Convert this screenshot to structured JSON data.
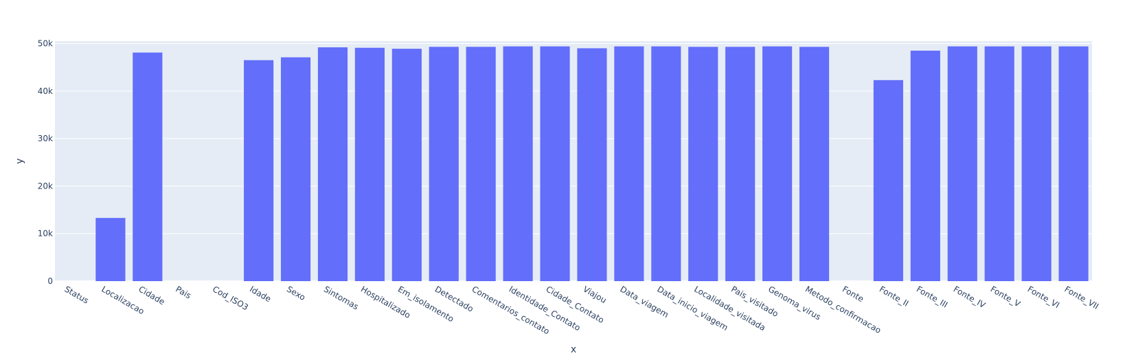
{
  "chart_data": {
    "type": "bar",
    "xlabel": "x",
    "ylabel": "y",
    "ylim": [
      0,
      50500
    ],
    "yticks": [
      0,
      10000,
      20000,
      30000,
      40000,
      50000
    ],
    "ytick_labels": [
      "0",
      "10k",
      "20k",
      "30k",
      "40k",
      "50k"
    ],
    "categories": [
      "Status",
      "Localizacao",
      "Cidade",
      "Pais",
      "Cod_ISO3",
      "Idade",
      "Sexo",
      "Sintomas",
      "Hospitalizado",
      "Em_isolamento",
      "Detectado",
      "Comentarios_contato",
      "Identidade_Contato",
      "Cidade_Contato",
      "Viajou",
      "Data_viagem",
      "Data_inicio_viagem",
      "Localidade_visitada",
      "Pais_visitado",
      "Genoma_virus",
      "Metodo_confirmacao",
      "Fonte",
      "Fonte_II",
      "Fonte_III",
      "Fonte_IV",
      "Fonte_V",
      "Fonte_VI",
      "Fonte_VII"
    ],
    "values": [
      0,
      13300,
      48100,
      0,
      0,
      46500,
      47100,
      49200,
      49100,
      48900,
      49300,
      49300,
      49400,
      49400,
      49000,
      49400,
      49400,
      49300,
      49300,
      49400,
      49300,
      0,
      42300,
      48500,
      49400,
      49400,
      49400,
      49400
    ],
    "grid": true,
    "colors": {
      "bar": "#636efa",
      "plot_bg": "#e5ecf6",
      "grid": "#ffffff",
      "text": "#2a3f5f"
    }
  }
}
